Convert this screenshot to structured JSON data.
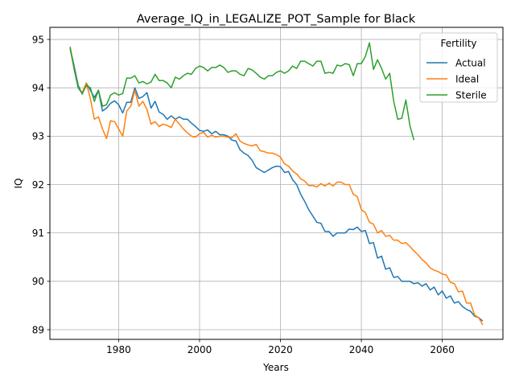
{
  "chart_data": {
    "type": "line",
    "title": "Average_IQ_in_LEGALIZE_POT_Sample for Black",
    "xlabel": "Years",
    "ylabel": "IQ",
    "xlim": [
      1963,
      2075
    ],
    "ylim": [
      88.8,
      95.25
    ],
    "xticks": [
      1980,
      2000,
      2020,
      2040,
      2060
    ],
    "yticks": [
      89,
      90,
      91,
      92,
      93,
      94,
      95
    ],
    "grid": true,
    "legend": {
      "title": "Fertility",
      "placement": "upper right"
    },
    "series": [
      {
        "name": "Actual",
        "color": "#1f77b4",
        "x": [
          1968,
          1969,
          1970,
          1971,
          1972,
          1973,
          1974,
          1975,
          1976,
          1977,
          1978,
          1979,
          1980,
          1981,
          1982,
          1983,
          1984,
          1985,
          1986,
          1987,
          1988,
          1989,
          1990,
          1991,
          1992,
          1993,
          1994,
          1995,
          1996,
          1997,
          1998,
          1999,
          2000,
          2001,
          2002,
          2003,
          2004,
          2005,
          2006,
          2007,
          2008,
          2009,
          2010,
          2011,
          2012,
          2013,
          2014,
          2015,
          2016,
          2017,
          2018,
          2019,
          2020,
          2021,
          2022,
          2023,
          2024,
          2025,
          2026,
          2027,
          2028,
          2029,
          2030,
          2031,
          2032,
          2033,
          2034,
          2035,
          2036,
          2037,
          2038,
          2039,
          2040,
          2041,
          2042,
          2043,
          2044,
          2045,
          2046,
          2047,
          2048,
          2049,
          2050,
          2051,
          2052,
          2053,
          2054,
          2055,
          2056,
          2057,
          2058,
          2059,
          2060,
          2061,
          2062,
          2063,
          2064,
          2065,
          2066,
          2067,
          2068,
          2069,
          2070
        ],
        "y": [
          94.82,
          94.45,
          94.05,
          93.87,
          94.1,
          93.95,
          93.8,
          93.95,
          93.52,
          93.58,
          93.68,
          93.73,
          93.65,
          93.48,
          93.7,
          93.7,
          94.0,
          93.78,
          93.82,
          93.9,
          93.58,
          93.72,
          93.5,
          93.45,
          93.35,
          93.42,
          93.35,
          93.4,
          93.35,
          93.35,
          93.27,
          93.2,
          93.12,
          93.1,
          93.13,
          93.05,
          93.1,
          93.03,
          93.03,
          93.0,
          92.92,
          92.9,
          92.72,
          92.65,
          92.6,
          92.5,
          92.35,
          92.3,
          92.25,
          92.3,
          92.35,
          92.38,
          92.37,
          92.25,
          92.27,
          92.1,
          92.0,
          91.8,
          91.65,
          91.48,
          91.35,
          91.22,
          91.2,
          91.03,
          91.03,
          90.93,
          91.0,
          91.0,
          91.0,
          91.08,
          91.07,
          91.12,
          91.03,
          91.05,
          90.78,
          90.8,
          90.48,
          90.52,
          90.25,
          90.28,
          90.08,
          90.1,
          90.0,
          90.0,
          90.0,
          89.95,
          89.97,
          89.9,
          89.95,
          89.82,
          89.88,
          89.72,
          89.8,
          89.65,
          89.7,
          89.55,
          89.58,
          89.48,
          89.42,
          89.38,
          89.28,
          89.25,
          89.18
        ]
      },
      {
        "name": "Ideal",
        "color": "#ff7f0e",
        "x": [
          1968,
          1969,
          1970,
          1971,
          1972,
          1973,
          1974,
          1975,
          1976,
          1977,
          1978,
          1979,
          1980,
          1981,
          1982,
          1983,
          1984,
          1985,
          1986,
          1987,
          1988,
          1989,
          1990,
          1991,
          1992,
          1993,
          1994,
          1995,
          1996,
          1997,
          1998,
          1999,
          2000,
          2001,
          2002,
          2003,
          2004,
          2005,
          2006,
          2007,
          2008,
          2009,
          2010,
          2011,
          2012,
          2013,
          2014,
          2015,
          2016,
          2017,
          2018,
          2019,
          2020,
          2021,
          2022,
          2023,
          2024,
          2025,
          2026,
          2027,
          2028,
          2029,
          2030,
          2031,
          2032,
          2033,
          2034,
          2035,
          2036,
          2037,
          2038,
          2039,
          2040,
          2041,
          2042,
          2043,
          2044,
          2045,
          2046,
          2047,
          2048,
          2049,
          2050,
          2051,
          2052,
          2053,
          2054,
          2055,
          2056,
          2057,
          2058,
          2059,
          2060,
          2061,
          2062,
          2063,
          2064,
          2065,
          2066,
          2067,
          2068,
          2069,
          2070
        ],
        "y": [
          94.8,
          94.4,
          94.0,
          93.9,
          94.1,
          93.78,
          93.35,
          93.4,
          93.15,
          92.95,
          93.32,
          93.3,
          93.15,
          93.0,
          93.52,
          93.62,
          93.95,
          93.62,
          93.72,
          93.55,
          93.25,
          93.3,
          93.2,
          93.25,
          93.22,
          93.18,
          93.35,
          93.25,
          93.15,
          93.07,
          93.0,
          92.98,
          93.05,
          93.08,
          92.98,
          93.02,
          92.98,
          93.0,
          93.0,
          92.98,
          92.97,
          93.05,
          92.9,
          92.85,
          92.82,
          92.8,
          92.83,
          92.7,
          92.68,
          92.65,
          92.65,
          92.62,
          92.57,
          92.43,
          92.38,
          92.28,
          92.22,
          92.12,
          92.07,
          91.98,
          91.98,
          91.95,
          92.02,
          91.97,
          92.03,
          91.97,
          92.05,
          92.05,
          92.0,
          92.0,
          91.8,
          91.75,
          91.48,
          91.42,
          91.22,
          91.18,
          91.0,
          91.05,
          90.93,
          90.95,
          90.85,
          90.85,
          90.78,
          90.8,
          90.72,
          90.63,
          90.55,
          90.45,
          90.38,
          90.28,
          90.23,
          90.2,
          90.15,
          90.13,
          89.98,
          89.95,
          89.78,
          89.8,
          89.55,
          89.55,
          89.3,
          89.25,
          89.1
        ]
      },
      {
        "name": "Sterile",
        "color": "#2ca02c",
        "x": [
          1968,
          1969,
          1970,
          1971,
          1972,
          1973,
          1974,
          1975,
          1976,
          1977,
          1978,
          1979,
          1980,
          1981,
          1982,
          1983,
          1984,
          1985,
          1986,
          1987,
          1988,
          1989,
          1990,
          1991,
          1992,
          1993,
          1994,
          1995,
          1996,
          1997,
          1998,
          1999,
          2000,
          2001,
          2002,
          2003,
          2004,
          2005,
          2006,
          2007,
          2008,
          2009,
          2010,
          2011,
          2012,
          2013,
          2014,
          2015,
          2016,
          2017,
          2018,
          2019,
          2020,
          2021,
          2022,
          2023,
          2024,
          2025,
          2026,
          2027,
          2028,
          2029,
          2030,
          2031,
          2032,
          2033,
          2034,
          2035,
          2036,
          2037,
          2038,
          2039,
          2040,
          2041,
          2042,
          2043,
          2044,
          2045,
          2046,
          2047,
          2048,
          2049,
          2050,
          2051,
          2052,
          2053
        ],
        "y": [
          94.85,
          94.38,
          94.0,
          93.88,
          94.05,
          94.0,
          93.72,
          93.95,
          93.62,
          93.65,
          93.85,
          93.9,
          93.85,
          93.88,
          94.2,
          94.2,
          94.25,
          94.1,
          94.13,
          94.08,
          94.12,
          94.28,
          94.15,
          94.15,
          94.1,
          94.0,
          94.22,
          94.18,
          94.25,
          94.3,
          94.28,
          94.4,
          94.45,
          94.42,
          94.35,
          94.42,
          94.42,
          94.47,
          94.42,
          94.32,
          94.35,
          94.35,
          94.28,
          94.25,
          94.4,
          94.37,
          94.3,
          94.22,
          94.18,
          94.25,
          94.25,
          94.32,
          94.35,
          94.3,
          94.35,
          94.45,
          94.4,
          94.55,
          94.55,
          94.5,
          94.45,
          94.55,
          94.55,
          94.3,
          94.32,
          94.3,
          94.47,
          94.45,
          94.5,
          94.48,
          94.25,
          94.5,
          94.5,
          94.65,
          94.93,
          94.38,
          94.58,
          94.4,
          94.18,
          94.3,
          93.72,
          93.35,
          93.37,
          93.75,
          93.22,
          92.92
        ]
      }
    ]
  }
}
